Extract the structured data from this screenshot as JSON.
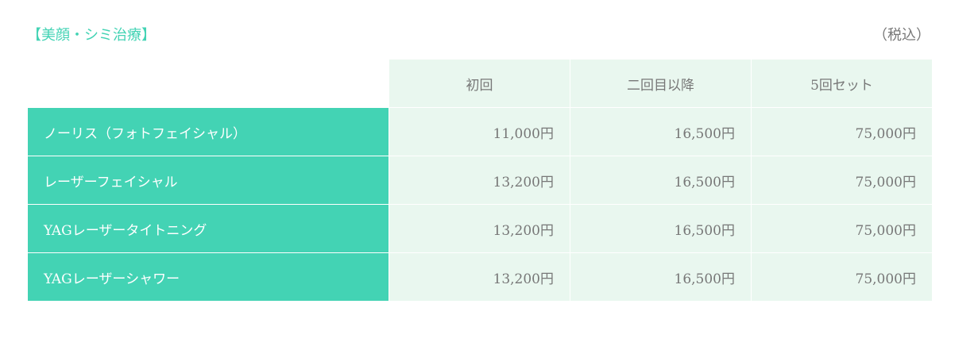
{
  "title": "【美顔・シミ治療】",
  "tax_note": "（税込）",
  "columns": [
    "初回",
    "二回目以降",
    "5回セット"
  ],
  "rows": [
    {
      "name": "ノーリス（フォトフェイシャル）",
      "prices": [
        "11,000円",
        "16,500円",
        "75,000円"
      ]
    },
    {
      "name": "レーザーフェイシャル",
      "prices": [
        "13,200円",
        "16,500円",
        "75,000円"
      ]
    },
    {
      "name": "YAGレーザータイトニング",
      "prices": [
        "13,200円",
        "16,500円",
        "75,000円"
      ]
    },
    {
      "name": "YAGレーザーシャワー",
      "prices": [
        "13,200円",
        "16,500円",
        "75,000円"
      ]
    }
  ],
  "colors": {
    "accent": "#43d3b4",
    "cell_bg": "#e9f7ef",
    "text": "#777777"
  }
}
